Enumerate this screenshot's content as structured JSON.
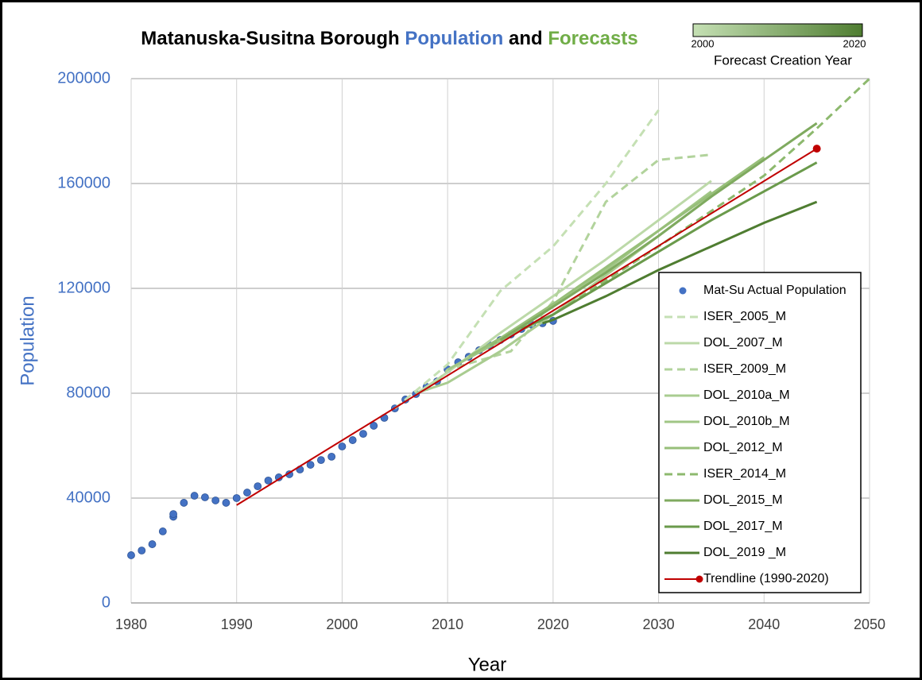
{
  "chart_data": {
    "type": "line",
    "title_parts": [
      "Matanuska-Susitna Borough",
      "Population",
      "and",
      "Forecasts"
    ],
    "title_colors": [
      "#000000",
      "#4472c4",
      "#000000",
      "#70ad47"
    ],
    "x_label": "Year",
    "y_label": "Population",
    "xlim": [
      1980,
      2050
    ],
    "xticks": [
      1980,
      1990,
      2000,
      2010,
      2020,
      2030,
      2040,
      2050
    ],
    "ylim": [
      0,
      200000
    ],
    "yticks": [
      0,
      40000,
      80000,
      120000,
      160000,
      200000
    ],
    "grid": true,
    "legend": "lower right",
    "colorbar": {
      "label": "Forecast Creation Year",
      "range": [
        2000,
        2020
      ],
      "ticks": [
        2000,
        2020
      ],
      "colors": [
        "#c5e0b4",
        "#4f7d31"
      ]
    },
    "series": [
      {
        "name": "Mat-Su Actual Population",
        "type": "scatter",
        "color": "#4472c4",
        "x": [
          1980,
          1981,
          1982,
          1983,
          1984,
          1984,
          1985,
          1986,
          1987,
          1988,
          1989,
          1990,
          1991,
          1992,
          1993,
          1994,
          1995,
          1996,
          1997,
          1998,
          1999,
          2000,
          2001,
          2002,
          2003,
          2004,
          2005,
          2006,
          2007,
          2008,
          2009,
          2010,
          2011,
          2012,
          2013,
          2014,
          2015,
          2016,
          2017,
          2018,
          2019,
          2020
        ],
        "values": [
          18200,
          20000,
          22400,
          27300,
          32900,
          33900,
          38200,
          40900,
          40300,
          39100,
          38200,
          40000,
          42100,
          44500,
          46700,
          47900,
          49100,
          50900,
          52700,
          54500,
          55800,
          59700,
          62100,
          64500,
          67600,
          70600,
          74200,
          77600,
          79700,
          82400,
          84500,
          89100,
          91800,
          93900,
          96400,
          98200,
          100300,
          102400,
          104500,
          106100,
          106700,
          107600
        ]
      },
      {
        "name": "ISER_2005_M",
        "type": "line",
        "dash": true,
        "color": "#c5e0b4",
        "x": [
          2005,
          2010,
          2015,
          2020,
          2025,
          2030
        ],
        "values": [
          74200,
          91000,
          119000,
          136000,
          160000,
          188000
        ]
      },
      {
        "name": "DOL_2007_M",
        "type": "line",
        "dash": false,
        "color": "#bcd9a8",
        "x": [
          2007,
          2010,
          2015,
          2020,
          2025,
          2030,
          2035
        ],
        "values": [
          79700,
          88000,
          103000,
          117000,
          131000,
          146000,
          161000
        ]
      },
      {
        "name": "ISER_2009_M",
        "type": "line",
        "dash": true,
        "color": "#b2d39c",
        "x": [
          2009,
          2010,
          2016,
          2020,
          2025,
          2030,
          2035
        ],
        "values": [
          84500,
          89000,
          96000,
          115000,
          153000,
          169000,
          171000
        ]
      },
      {
        "name": "DOL_2010a_M",
        "type": "line",
        "dash": false,
        "color": "#a9cc90",
        "x": [
          2007,
          2010,
          2015,
          2020,
          2025,
          2030,
          2035
        ],
        "values": [
          80000,
          84000,
          96000,
          110000,
          125000,
          140000,
          155000
        ]
      },
      {
        "name": "DOL_2010b_M",
        "type": "line",
        "dash": false,
        "color": "#a0c685",
        "x": [
          2010,
          2015,
          2020,
          2025,
          2030,
          2035
        ],
        "values": [
          89000,
          100000,
          113000,
          127000,
          142000,
          157000
        ]
      },
      {
        "name": "DOL_2012_M",
        "type": "line",
        "dash": false,
        "color": "#97bf79",
        "x": [
          2012,
          2015,
          2020,
          2025,
          2030,
          2035,
          2040
        ],
        "values": [
          94000,
          101000,
          114000,
          128000,
          142000,
          156000,
          170000
        ]
      },
      {
        "name": "ISER_2014_M",
        "type": "line",
        "dash": true,
        "color": "#8db96e",
        "x": [
          2014,
          2020,
          2030,
          2040,
          2045,
          2050
        ],
        "values": [
          98200,
          110000,
          136000,
          163000,
          181000,
          200000
        ]
      },
      {
        "name": "DOL_2015_M",
        "type": "line",
        "dash": false,
        "color": "#7faa5f",
        "x": [
          2015,
          2020,
          2025,
          2030,
          2035,
          2040,
          2045
        ],
        "values": [
          100300,
          113000,
          126000,
          140000,
          155000,
          169000,
          183000
        ]
      },
      {
        "name": "DOL_2017_M",
        "type": "line",
        "dash": false,
        "color": "#6a9a4b",
        "x": [
          2017,
          2020,
          2025,
          2030,
          2035,
          2040,
          2045
        ],
        "values": [
          104500,
          110000,
          122000,
          134000,
          146000,
          157000,
          168000
        ]
      },
      {
        "name": "DOL_2019 _M",
        "type": "line",
        "dash": false,
        "color": "#4f7d31",
        "x": [
          2019,
          2020,
          2025,
          2030,
          2035,
          2040,
          2045
        ],
        "values": [
          106700,
          108000,
          117000,
          127000,
          136000,
          145000,
          153000
        ]
      },
      {
        "name": "Trendline (1990-2020)",
        "type": "line",
        "dash": false,
        "marker": "end",
        "color": "#c00000",
        "x": [
          1990,
          2045
        ],
        "values": [
          37300,
          173300
        ]
      }
    ]
  }
}
